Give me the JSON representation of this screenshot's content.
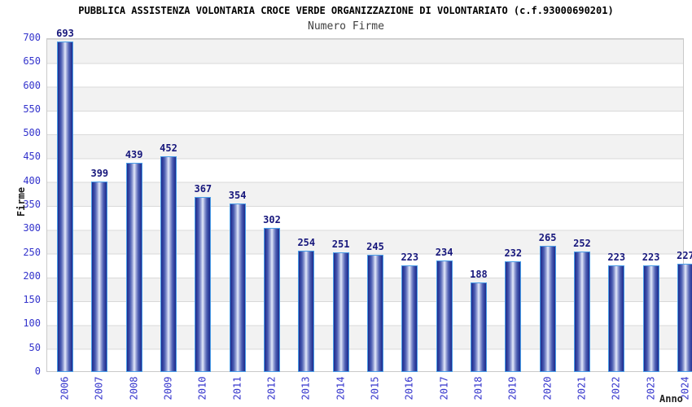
{
  "chart_data": {
    "type": "bar",
    "title": "PUBBLICA ASSISTENZA VOLONTARIA CROCE VERDE ORGANIZZAZIONE DI VOLONTARIATO (c.f.93000690201)",
    "subtitle": "Numero Firme",
    "xlabel": "Anno",
    "ylabel": "Firme",
    "categories": [
      "2006",
      "2007",
      "2008",
      "2009",
      "2010",
      "2011",
      "2012",
      "2013",
      "2014",
      "2015",
      "2016",
      "2017",
      "2018",
      "2019",
      "2020",
      "2021",
      "2022",
      "2023",
      "2024"
    ],
    "values": [
      693,
      399,
      439,
      452,
      367,
      354,
      302,
      254,
      251,
      245,
      223,
      234,
      188,
      232,
      265,
      252,
      223,
      223,
      227
    ],
    "ylim": [
      0,
      700
    ],
    "ytick_step": 50,
    "legend": "none",
    "grid": "horizontal gridlines every 50 with alternating gray/white bands",
    "value_labels": "above each bar",
    "colors": {
      "axis_tick_label": "#3333cc",
      "value_label": "#17177c",
      "bar_border": "#4a9ee8",
      "bar_edge": "#1c2b8d",
      "bar_center": "#e8edfa",
      "band_gray": "#f2f2f2",
      "gridline": "#d9d9d9",
      "plot_border": "#c9c9c9",
      "title_color": "#000000",
      "subtitle_color": "#404040"
    }
  }
}
